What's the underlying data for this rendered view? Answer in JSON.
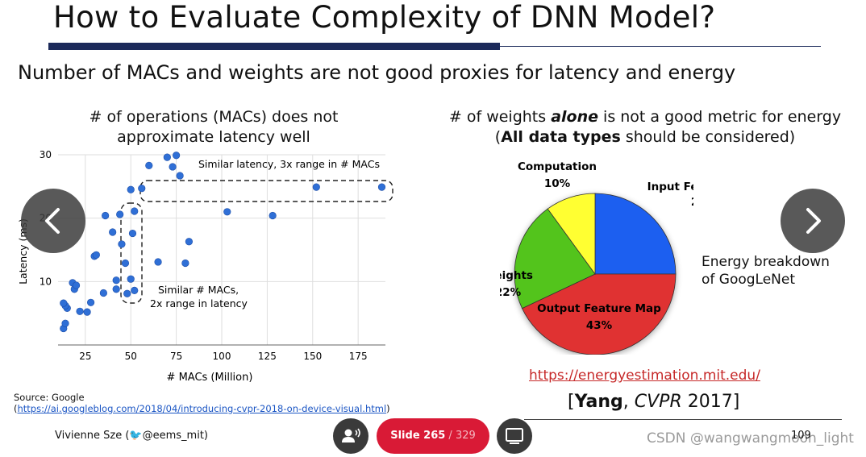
{
  "slide": {
    "title": "How to Evaluate Complexity of DNN Model?",
    "subtitle": "Number of MACs and weights are not good proxies for latency and energy",
    "left_heading_line1": "# of operations (MACs) does not",
    "left_heading_line2": "approximate latency well",
    "right_heading_pre": "# of weights ",
    "right_heading_emph": "alone",
    "right_heading_post": " is not a good metric for energy",
    "right_heading2_open": "(",
    "right_heading2_bold": "All data types",
    "right_heading2_rest": " should be considered)",
    "source_line1": "Source: Google",
    "source_open": "(",
    "source_url": "https://ai.googleblog.com/2018/04/introducing-cvpr-2018-on-device-visual.html",
    "source_close": ")",
    "energy_label_line1": "Energy breakdown",
    "energy_label_line2": "of GoogLeNet",
    "link": "https://energyestimation.mit.edu/",
    "citation_open": "[",
    "citation_author": "Yang",
    "citation_venue": "CVPR",
    "citation_year": " 2017]",
    "footer_name": "Vivienne Sze (",
    "footer_handle": "@eems_mit)",
    "page_number": "109"
  },
  "viewer": {
    "slide_label": "Slide 265",
    "slide_total": " / 329",
    "watermark": "CSDN @wangwangmoon_light"
  },
  "icons": {
    "prev": "chevron-left-icon",
    "next": "chevron-right-icon",
    "participants": "participants-icon",
    "screen": "screen-icon",
    "twitter": "twitter-bird-icon"
  },
  "chart_data": [
    {
      "type": "scatter",
      "xlabel": "# MACs (Million)",
      "ylabel": "Latency (ms)",
      "xlim": [
        10,
        190
      ],
      "ylim": [
        0,
        30
      ],
      "xticks": [
        25,
        50,
        75,
        100,
        125,
        150,
        175
      ],
      "yticks": [
        10,
        20,
        30
      ],
      "grid": true,
      "color": "#2f6fd6",
      "annotations": [
        "Similar latency, 3x range in # MACs",
        "Similar # MACs,",
        "2x range in latency"
      ],
      "x": [
        13,
        14,
        15,
        14,
        13,
        18,
        19,
        20,
        22,
        26,
        28,
        30,
        31,
        35,
        36,
        42,
        40,
        42,
        45,
        44,
        47,
        48,
        50,
        51,
        52,
        52,
        50,
        56,
        60,
        65,
        70,
        73,
        75,
        80,
        77,
        82,
        103,
        128,
        152,
        188
      ],
      "y": [
        2.6,
        3.4,
        5.8,
        6.2,
        6.6,
        9.8,
        8.8,
        9.4,
        5.3,
        5.2,
        6.7,
        14,
        14.2,
        8.2,
        20.4,
        8.8,
        17.8,
        10.2,
        15.9,
        20.6,
        12.9,
        8.1,
        10.4,
        17.6,
        8.6,
        21.1,
        24.5,
        24.7,
        28.3,
        13.1,
        29.6,
        28.1,
        29.9,
        12.9,
        26.7,
        16.3,
        21,
        20.4,
        24.9,
        24.9
      ]
    },
    {
      "type": "pie",
      "categories": [
        "Input Feature Map",
        "Output Feature Map",
        "Weights",
        "Computation"
      ],
      "values": [
        25,
        43,
        22,
        10
      ],
      "labels": [
        "Input Feature Map",
        "25%",
        "Output Feature Map",
        "43%",
        "Weights",
        "22%",
        "Computation",
        "10%"
      ],
      "colors": [
        "#1f5ff0",
        "#e03232",
        "#52c41a",
        "#ffff33"
      ]
    }
  ]
}
